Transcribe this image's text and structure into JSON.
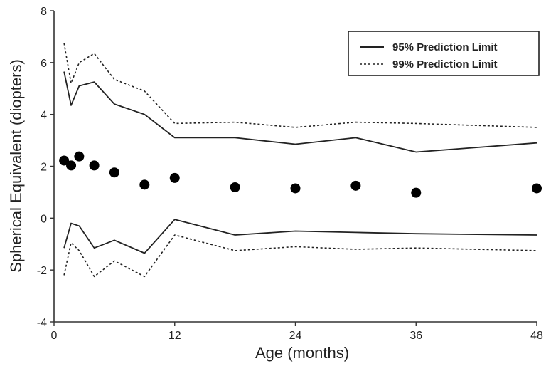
{
  "chart_data": {
    "type": "scatter",
    "title": "",
    "xlabel": "Age  (months)",
    "ylabel": "Spherical Equivalent  (diopters)",
    "xlim": [
      0,
      48
    ],
    "ylim": [
      -4,
      8
    ],
    "xticks": [
      0,
      12,
      24,
      36,
      48
    ],
    "yticks": [
      -4,
      -2,
      0,
      2,
      4,
      6,
      8
    ],
    "grid": false,
    "legend_position": "top-right",
    "points": {
      "x": [
        1,
        1.7,
        2.5,
        4,
        6,
        9,
        12,
        18,
        24,
        30,
        36,
        48
      ],
      "y": [
        2.22,
        2.03,
        2.38,
        2.03,
        1.76,
        1.29,
        1.55,
        1.19,
        1.15,
        1.25,
        0.98,
        1.15
      ]
    },
    "series": [
      {
        "name": "95% Prediction Limit",
        "style": "solid",
        "upper": {
          "x": [
            1,
            1.7,
            2.5,
            4,
            6,
            9,
            12,
            18,
            24,
            30,
            36,
            48
          ],
          "y": [
            5.65,
            4.35,
            5.1,
            5.25,
            4.4,
            4.0,
            3.1,
            3.1,
            2.85,
            3.1,
            2.55,
            2.9
          ]
        },
        "lower": {
          "x": [
            1,
            1.7,
            2.5,
            4,
            6,
            9,
            12,
            18,
            24,
            30,
            36,
            48
          ],
          "y": [
            -1.15,
            -0.2,
            -0.3,
            -1.15,
            -0.85,
            -1.35,
            -0.05,
            -0.65,
            -0.5,
            -0.55,
            -0.6,
            -0.65
          ]
        }
      },
      {
        "name": "99% Prediction Limit",
        "style": "dashed",
        "upper": {
          "x": [
            1,
            1.7,
            2.5,
            4,
            6,
            9,
            12,
            18,
            24,
            30,
            36,
            48
          ],
          "y": [
            6.75,
            5.2,
            6.0,
            6.35,
            5.35,
            4.9,
            3.65,
            3.7,
            3.5,
            3.7,
            3.65,
            3.5
          ]
        },
        "lower": {
          "x": [
            1,
            1.7,
            2.5,
            4,
            6,
            9,
            12,
            18,
            24,
            30,
            36,
            48
          ],
          "y": [
            -2.2,
            -0.95,
            -1.25,
            -2.25,
            -1.65,
            -2.25,
            -0.65,
            -1.25,
            -1.1,
            -1.2,
            -1.15,
            -1.25
          ]
        }
      }
    ],
    "colors": {
      "axis": "#333333",
      "line": "#222222",
      "point": "#000000",
      "background": "#ffffff"
    }
  }
}
